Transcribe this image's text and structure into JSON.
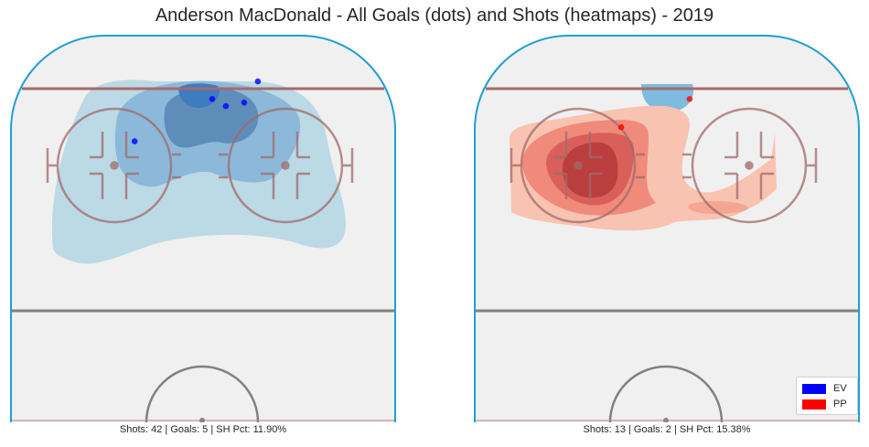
{
  "title": "Anderson MacDonald - All Goals (dots) and Shots (heatmaps) - 2019",
  "colors": {
    "ev": "#0000ff",
    "pp": "#ff0000",
    "boards": "#1fa0d0",
    "goal_line": "#a86a6a",
    "ice": "#f0f0f0"
  },
  "chart_data": [
    {
      "type": "heatmap",
      "panel": "left",
      "strength": "EV",
      "stats_text": "Shots: 42 | Goals: 5 | SH Pct: 11.90%",
      "stats": {
        "shots": 42,
        "goals": 5,
        "sh_pct": 11.9
      },
      "heatmap_color": "blues",
      "goals": [
        {
          "x": 2,
          "y": 82
        },
        {
          "x": 5,
          "y": 80
        },
        {
          "x": 9,
          "y": 81
        },
        {
          "x": 12,
          "y": 87
        },
        {
          "x": -15,
          "y": 70
        }
      ]
    },
    {
      "type": "heatmap",
      "panel": "right",
      "strength": "PP",
      "stats_text": "Shots: 13 | Goals: 2 | SH Pct: 15.38%",
      "stats": {
        "shots": 13,
        "goals": 2,
        "sh_pct": 15.38
      },
      "heatmap_color": "reds",
      "goals": [
        {
          "x": -10,
          "y": 74
        },
        {
          "x": 5,
          "y": 82
        }
      ]
    }
  ],
  "legend": {
    "items": [
      {
        "label": "EV",
        "color": "#0000ff"
      },
      {
        "label": "PP",
        "color": "#ff0000"
      }
    ]
  }
}
